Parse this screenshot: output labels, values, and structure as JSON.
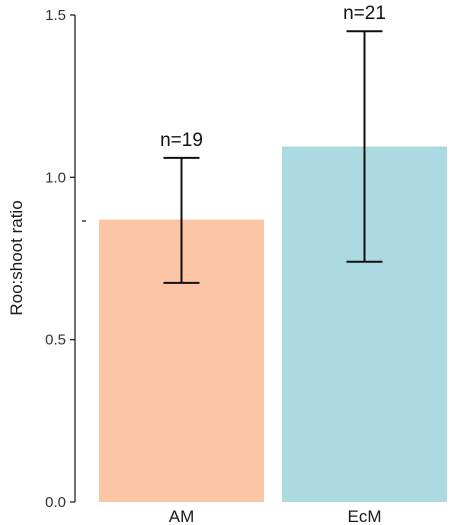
{
  "chart_data": {
    "type": "bar",
    "title": "",
    "xlabel": "",
    "ylabel": "Roo:shoot ratio",
    "ylim": [
      0.0,
      1.5
    ],
    "yticks": [
      "0.0",
      "0.5",
      "1.0",
      "1.5"
    ],
    "categories": [
      "AM",
      "EcM"
    ],
    "values": [
      0.87,
      1.095
    ],
    "error_low": [
      0.675,
      0.74
    ],
    "error_high": [
      1.06,
      1.45
    ],
    "annotations": [
      "n=19",
      "n=21"
    ],
    "colors": [
      "#fcc5a5",
      "#acdae3"
    ],
    "grid": false,
    "legend": "none"
  }
}
